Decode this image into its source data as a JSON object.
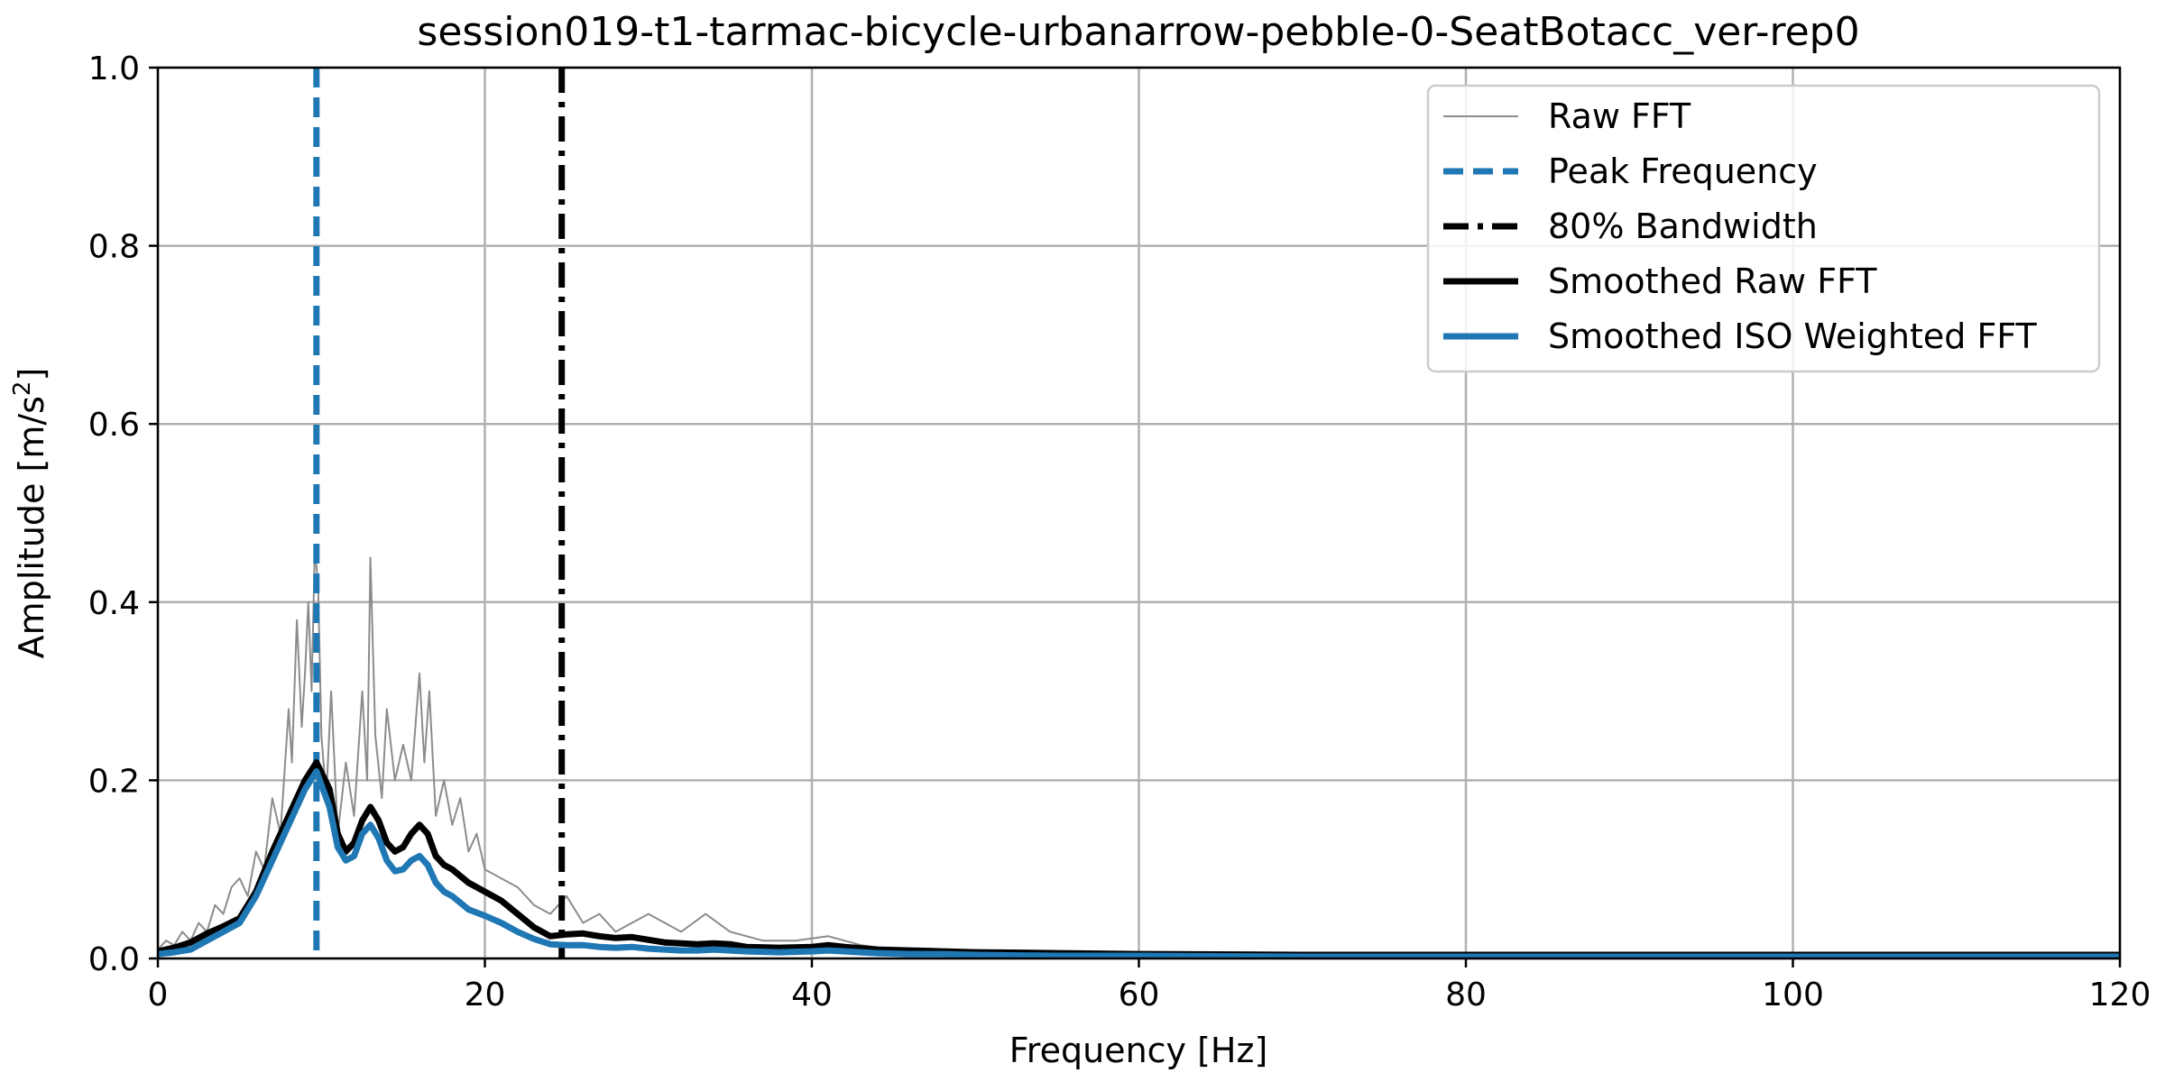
{
  "chart_data": {
    "type": "line",
    "title": "session019-t1-tarmac-bicycle-urbanarrow-pebble-0-SeatBotacc_ver-rep0",
    "xlabel": "Frequency [Hz]",
    "ylabel_main": "Amplitude [m/s",
    "ylabel_sup": "2",
    "ylabel_end": "]",
    "xlim": [
      0,
      120
    ],
    "ylim": [
      0,
      1.0
    ],
    "x_ticks": [
      0,
      20,
      40,
      60,
      80,
      100,
      120
    ],
    "x_tick_labels": [
      "0",
      "20",
      "40",
      "60",
      "80",
      "100",
      "120"
    ],
    "y_ticks": [
      0.0,
      0.2,
      0.4,
      0.6,
      0.8,
      1.0
    ],
    "y_tick_labels": [
      "0.0",
      "0.2",
      "0.4",
      "0.6",
      "0.8",
      "1.0"
    ],
    "grid": true,
    "legend_position": "top-right",
    "peak_frequency": 9.7,
    "bandwidth_80": 24.7,
    "series": [
      {
        "name": "Raw FFT",
        "color": "#8c8c8c",
        "style": "thin",
        "x": [
          0,
          0.5,
          1,
          1.5,
          2,
          2.5,
          3,
          3.5,
          4,
          4.5,
          5,
          5.5,
          6,
          6.5,
          7,
          7.5,
          8,
          8.2,
          8.5,
          8.8,
          9,
          9.2,
          9.4,
          9.6,
          9.8,
          10,
          10.3,
          10.6,
          11,
          11.5,
          12,
          12.5,
          12.8,
          13,
          13.3,
          13.7,
          14,
          14.5,
          15,
          15.5,
          16,
          16.3,
          16.6,
          17,
          17.5,
          18,
          18.5,
          19,
          19.5,
          20,
          21,
          22,
          23,
          24,
          25,
          26,
          27,
          28,
          29,
          30,
          32,
          33.5,
          35,
          37,
          39,
          41,
          43,
          45,
          48,
          52,
          56,
          60,
          70,
          80,
          90,
          100,
          110,
          120
        ],
        "y": [
          0.01,
          0.02,
          0.015,
          0.03,
          0.02,
          0.04,
          0.03,
          0.06,
          0.05,
          0.08,
          0.09,
          0.07,
          0.12,
          0.1,
          0.18,
          0.14,
          0.28,
          0.22,
          0.38,
          0.26,
          0.32,
          0.4,
          0.3,
          0.46,
          0.42,
          0.25,
          0.18,
          0.3,
          0.14,
          0.22,
          0.16,
          0.3,
          0.2,
          0.45,
          0.25,
          0.18,
          0.28,
          0.2,
          0.24,
          0.2,
          0.32,
          0.22,
          0.3,
          0.16,
          0.2,
          0.15,
          0.18,
          0.12,
          0.14,
          0.1,
          0.09,
          0.08,
          0.06,
          0.05,
          0.07,
          0.04,
          0.05,
          0.03,
          0.04,
          0.05,
          0.03,
          0.05,
          0.03,
          0.02,
          0.02,
          0.025,
          0.015,
          0.01,
          0.01,
          0.008,
          0.006,
          0.005,
          0.004,
          0.004,
          0.003,
          0.003,
          0.003,
          0.003
        ]
      },
      {
        "name": "Peak Frequency",
        "color": "#1f77b4",
        "style": "dashed"
      },
      {
        "name": "80% Bandwidth",
        "color": "#000000",
        "style": "dashdot"
      },
      {
        "name": "Smoothed Raw FFT",
        "color": "#000000",
        "style": "solid",
        "x": [
          0,
          1,
          2,
          3,
          4,
          5,
          6,
          7,
          8,
          9,
          9.7,
          10.5,
          11,
          11.5,
          12,
          12.5,
          13,
          13.5,
          14,
          14.5,
          15,
          15.5,
          16,
          16.5,
          17,
          17.5,
          18,
          19,
          20,
          21,
          22,
          23,
          24,
          25,
          26,
          27,
          28,
          29,
          30,
          31,
          32,
          33,
          34,
          35,
          36,
          38,
          40,
          41,
          42,
          44,
          46,
          48,
          50,
          55,
          60,
          70,
          80,
          90,
          100,
          110,
          120
        ],
        "y": [
          0.008,
          0.012,
          0.018,
          0.028,
          0.036,
          0.045,
          0.075,
          0.12,
          0.16,
          0.2,
          0.22,
          0.19,
          0.14,
          0.12,
          0.13,
          0.155,
          0.17,
          0.155,
          0.13,
          0.12,
          0.125,
          0.14,
          0.15,
          0.14,
          0.115,
          0.105,
          0.1,
          0.085,
          0.075,
          0.065,
          0.05,
          0.035,
          0.025,
          0.027,
          0.028,
          0.025,
          0.023,
          0.024,
          0.021,
          0.018,
          0.017,
          0.016,
          0.017,
          0.016,
          0.013,
          0.012,
          0.013,
          0.015,
          0.013,
          0.01,
          0.009,
          0.008,
          0.007,
          0.006,
          0.005,
          0.004,
          0.004,
          0.004,
          0.004,
          0.004,
          0.004
        ]
      },
      {
        "name": "Smoothed ISO Weighted FFT",
        "color": "#1f77b4",
        "style": "solid",
        "x": [
          0,
          1,
          2,
          3,
          4,
          5,
          6,
          7,
          8,
          9,
          9.7,
          10.5,
          11,
          11.5,
          12,
          12.5,
          13,
          13.5,
          14,
          14.5,
          15,
          15.5,
          16,
          16.5,
          17,
          17.5,
          18,
          19,
          20,
          21,
          22,
          23,
          24,
          25,
          26,
          27,
          28,
          29,
          30,
          31,
          32,
          33,
          34,
          35,
          36,
          38,
          40,
          41,
          42,
          44,
          46,
          48,
          50,
          55,
          60,
          70,
          80,
          90,
          100,
          110,
          120
        ],
        "y": [
          0.005,
          0.007,
          0.01,
          0.02,
          0.03,
          0.04,
          0.07,
          0.11,
          0.15,
          0.19,
          0.21,
          0.17,
          0.125,
          0.11,
          0.115,
          0.14,
          0.15,
          0.135,
          0.11,
          0.098,
          0.1,
          0.11,
          0.115,
          0.105,
          0.085,
          0.075,
          0.07,
          0.055,
          0.048,
          0.04,
          0.03,
          0.022,
          0.016,
          0.015,
          0.015,
          0.013,
          0.012,
          0.013,
          0.011,
          0.01,
          0.009,
          0.009,
          0.01,
          0.009,
          0.008,
          0.007,
          0.008,
          0.009,
          0.008,
          0.006,
          0.005,
          0.005,
          0.004,
          0.003,
          0.003,
          0.002,
          0.002,
          0.002,
          0.002,
          0.002,
          0.002
        ]
      }
    ]
  }
}
